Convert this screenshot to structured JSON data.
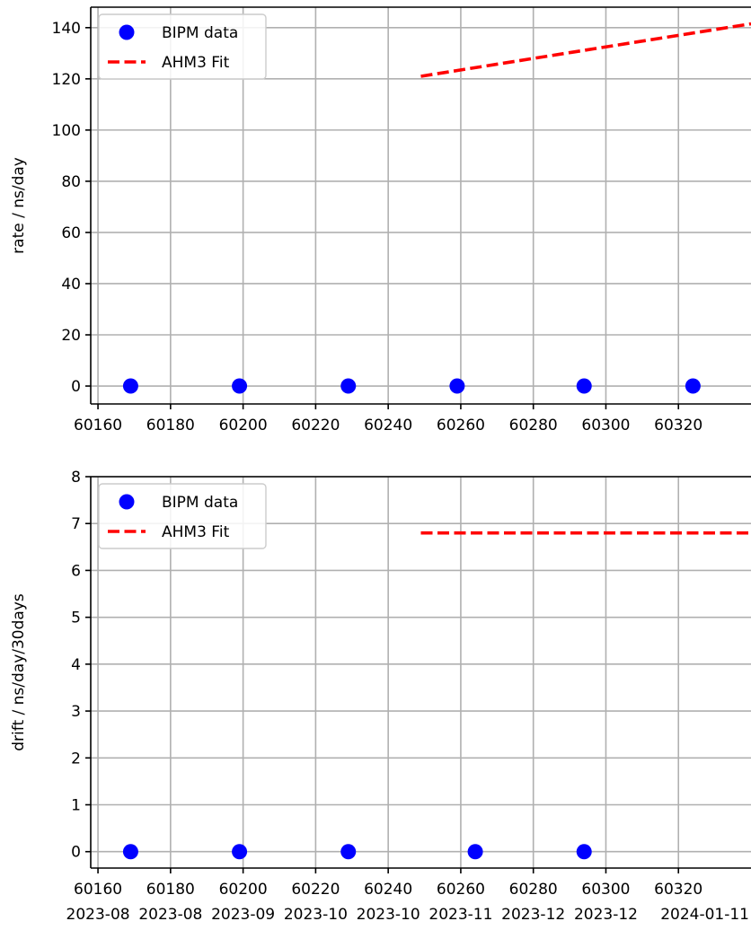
{
  "colors": {
    "data_marker": "#0000ff",
    "fit_line": "#ff0000",
    "grid": "#b0b0b0",
    "axis": "#000000",
    "background": "#ffffff"
  },
  "chart_data": [
    {
      "type": "scatter",
      "title": "",
      "xlabel": "",
      "ylabel": "rate / ns/day",
      "xlim": [
        60158,
        60340
      ],
      "ylim": [
        -7,
        148
      ],
      "grid": true,
      "legend_position": "top-left",
      "x_ticks": [
        60160,
        60180,
        60200,
        60220,
        60240,
        60260,
        60280,
        60300,
        60320
      ],
      "x_tick_labels": [
        "60160",
        "60180",
        "60200",
        "60220",
        "60240",
        "60260",
        "60280",
        "60300",
        "60320"
      ],
      "y_ticks": [
        0,
        20,
        40,
        60,
        80,
        100,
        120,
        140
      ],
      "y_tick_labels": [
        "0",
        "20",
        "40",
        "60",
        "80",
        "100",
        "120",
        "140"
      ],
      "series": [
        {
          "name": "BIPM data",
          "kind": "scatter",
          "color": "#0000ff",
          "x": [
            60169,
            60199,
            60229,
            60259,
            60294,
            60324
          ],
          "y": [
            0,
            0,
            0,
            0,
            0,
            0
          ]
        },
        {
          "name": "AHM3 Fit",
          "kind": "line",
          "style": "dashed",
          "color": "#ff0000",
          "x": [
            60249,
            60340
          ],
          "y": [
            121,
            141.5
          ]
        }
      ]
    },
    {
      "type": "scatter",
      "title": "",
      "xlabel": "",
      "ylabel": "drift / ns/day/30days",
      "xlim": [
        60158,
        60340
      ],
      "ylim": [
        -0.35,
        8
      ],
      "grid": true,
      "legend_position": "top-left",
      "x_ticks": [
        60160,
        60180,
        60200,
        60220,
        60240,
        60260,
        60280,
        60300,
        60320
      ],
      "x_tick_labels": [
        "60160",
        "60180",
        "60200",
        "60220",
        "60240",
        "60260",
        "60280",
        "60300",
        "60320"
      ],
      "x_secondary_tick_labels": [
        "2023-08",
        "2023-08",
        "2023-09",
        "2023-10",
        "2023-10",
        "2023-11",
        "2023-12",
        "2023-12",
        "2024-01-11"
      ],
      "y_ticks": [
        0,
        1,
        2,
        3,
        4,
        5,
        6,
        7,
        8
      ],
      "y_tick_labels": [
        "0",
        "1",
        "2",
        "3",
        "4",
        "5",
        "6",
        "7",
        "8"
      ],
      "series": [
        {
          "name": "BIPM data",
          "kind": "scatter",
          "color": "#0000ff",
          "x": [
            60169,
            60199,
            60229,
            60264,
            60294
          ],
          "y": [
            0,
            0,
            0,
            0,
            0
          ]
        },
        {
          "name": "AHM3 Fit",
          "kind": "line",
          "style": "dashed",
          "color": "#ff0000",
          "x": [
            60249,
            60340
          ],
          "y": [
            6.8,
            6.8
          ]
        }
      ]
    }
  ]
}
